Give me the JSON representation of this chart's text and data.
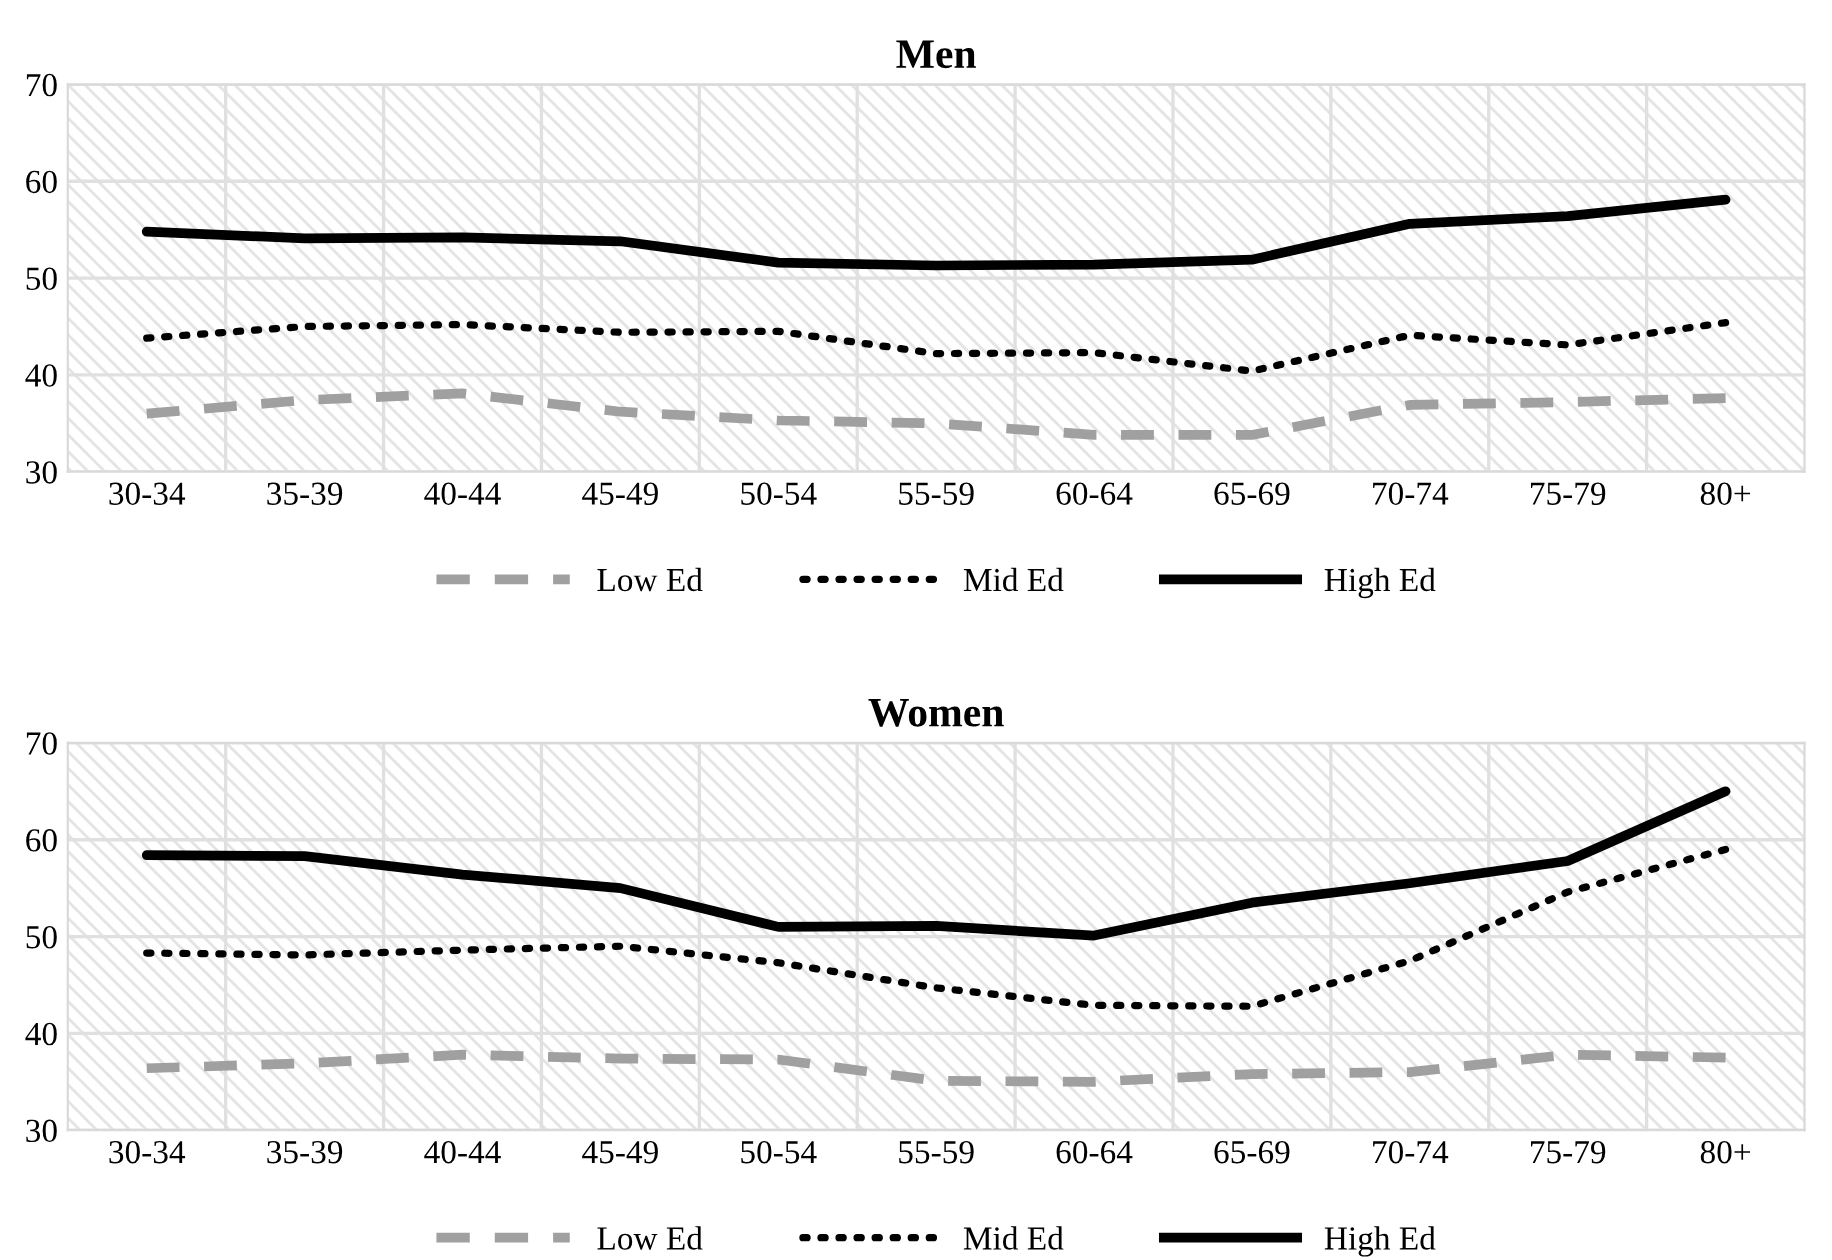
{
  "chart_data": [
    {
      "type": "line",
      "title": "Men",
      "categories": [
        "30-34",
        "35-39",
        "40-44",
        "45-49",
        "50-54",
        "55-59",
        "60-64",
        "65-69",
        "70-74",
        "75-79",
        "80+"
      ],
      "series": [
        {
          "name": "Low Ed",
          "color": "#a0a0a0",
          "line_style": "dashed",
          "values": [
            36.0,
            37.4,
            38.1,
            36.2,
            35.3,
            35.0,
            33.8,
            33.8,
            36.9,
            37.2,
            37.6
          ]
        },
        {
          "name": "Mid Ed",
          "color": "#000000",
          "line_style": "dotted",
          "values": [
            43.8,
            45.0,
            45.2,
            44.4,
            44.5,
            42.2,
            42.3,
            40.4,
            44.1,
            43.1,
            45.4
          ]
        },
        {
          "name": "High Ed",
          "color": "#000000",
          "line_style": "solid",
          "values": [
            54.8,
            54.1,
            54.2,
            53.8,
            51.6,
            51.3,
            51.4,
            51.9,
            55.6,
            56.4,
            58.1
          ]
        }
      ],
      "ylim": [
        30,
        70
      ],
      "yticks": [
        30,
        40,
        50,
        60,
        70
      ],
      "grid": true,
      "legend": "bottom"
    },
    {
      "type": "line",
      "title": "Women",
      "categories": [
        "30-34",
        "35-39",
        "40-44",
        "45-49",
        "50-54",
        "55-59",
        "60-64",
        "65-69",
        "70-74",
        "75-79",
        "80+"
      ],
      "series": [
        {
          "name": "Low Ed",
          "color": "#a0a0a0",
          "line_style": "dashed",
          "values": [
            36.4,
            36.9,
            37.8,
            37.4,
            37.3,
            35.1,
            35.0,
            35.8,
            36.0,
            37.8,
            37.5
          ]
        },
        {
          "name": "Mid Ed",
          "color": "#000000",
          "line_style": "dotted",
          "values": [
            48.3,
            48.1,
            48.6,
            49.0,
            47.3,
            44.7,
            42.9,
            42.8,
            47.5,
            54.6,
            59.0
          ]
        },
        {
          "name": "High Ed",
          "color": "#000000",
          "line_style": "solid",
          "values": [
            58.4,
            58.3,
            56.4,
            55.0,
            51.0,
            51.1,
            50.1,
            53.5,
            55.5,
            57.8,
            65.0
          ]
        }
      ],
      "ylim": [
        30,
        70
      ],
      "yticks": [
        30,
        40,
        50,
        60,
        70
      ],
      "grid": true,
      "legend": "bottom"
    }
  ]
}
